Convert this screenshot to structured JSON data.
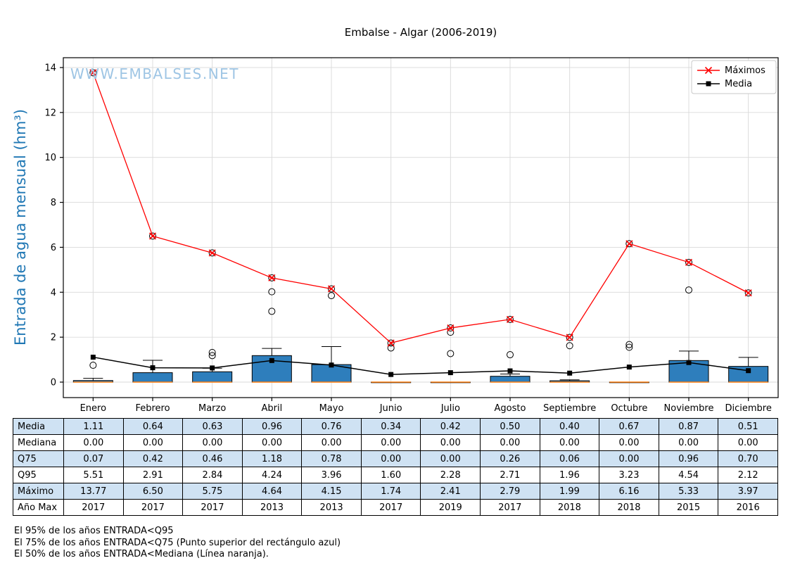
{
  "page": {
    "title": "Embalse - Algar (2006-2019)",
    "watermark": "WWW.EMBALSES.NET"
  },
  "chart_data": {
    "type": "boxplot",
    "title": "Embalse - Algar (2006-2019)",
    "ylabel": "Entrada de agua mensual (hm³)",
    "xlabel": "",
    "ylim": [
      -0.69,
      14.44
    ],
    "yticks": [
      0,
      2,
      4,
      6,
      8,
      10,
      12,
      14
    ],
    "grid": true,
    "legend": [
      "Máximos",
      "Media"
    ],
    "legend_position": "top-right",
    "categories": [
      "Enero",
      "Febrero",
      "Marzo",
      "Abril",
      "Mayo",
      "Junio",
      "Julio",
      "Agosto",
      "Septiembre",
      "Octubre",
      "Noviembre",
      "Diciembre"
    ],
    "maximos": [
      13.77,
      6.5,
      5.75,
      4.64,
      4.15,
      1.74,
      2.41,
      2.79,
      1.99,
      6.16,
      5.33,
      3.97
    ],
    "media": [
      1.11,
      0.64,
      0.63,
      0.96,
      0.76,
      0.34,
      0.42,
      0.5,
      0.4,
      0.67,
      0.87,
      0.51
    ],
    "mediana": [
      0,
      0,
      0,
      0,
      0,
      0,
      0,
      0,
      0,
      0,
      0,
      0
    ],
    "q75": [
      0.07,
      0.42,
      0.46,
      1.18,
      0.78,
      0.0,
      0.0,
      0.26,
      0.06,
      0.0,
      0.96,
      0.7
    ],
    "q95": [
      5.51,
      2.91,
      2.84,
      4.24,
      3.96,
      1.6,
      2.28,
      2.71,
      1.96,
      3.23,
      4.54,
      2.12
    ],
    "anio_max": [
      2017,
      2017,
      2017,
      2013,
      2013,
      2017,
      2019,
      2017,
      2018,
      2018,
      2015,
      2016
    ],
    "whisker_high": [
      0.17,
      0.97,
      0.62,
      1.5,
      1.58,
      0,
      0,
      0.36,
      0.1,
      0,
      1.38,
      1.1
    ],
    "fliers": [
      [
        0.75,
        13.77
      ],
      [
        6.5
      ],
      [
        1.18,
        1.32,
        5.75
      ],
      [
        3.15,
        4.02,
        4.64
      ],
      [
        3.85,
        4.15
      ],
      [
        1.52,
        1.74
      ],
      [
        1.27,
        2.22,
        2.41
      ],
      [
        1.22,
        2.79
      ],
      [
        1.62,
        1.99
      ],
      [
        1.55,
        1.67,
        6.16
      ],
      [
        4.1,
        5.33
      ],
      [
        3.97
      ]
    ],
    "colors": {
      "box_fill": "#2e7ebc",
      "box_edge": "#000000",
      "median": "#ff7f0e",
      "max_line": "#ff0000",
      "media_line": "#000000",
      "grid": "#d9d9d9",
      "ylabel": "#1f77b4",
      "watermark": "#9ec5e4"
    }
  },
  "table": {
    "rows": [
      {
        "label": "Media",
        "values": [
          "1.11",
          "0.64",
          "0.63",
          "0.96",
          "0.76",
          "0.34",
          "0.42",
          "0.50",
          "0.40",
          "0.67",
          "0.87",
          "0.51"
        ]
      },
      {
        "label": "Mediana",
        "values": [
          "0.00",
          "0.00",
          "0.00",
          "0.00",
          "0.00",
          "0.00",
          "0.00",
          "0.00",
          "0.00",
          "0.00",
          "0.00",
          "0.00"
        ]
      },
      {
        "label": "Q75",
        "values": [
          "0.07",
          "0.42",
          "0.46",
          "1.18",
          "0.78",
          "0.00",
          "0.00",
          "0.26",
          "0.06",
          "0.00",
          "0.96",
          "0.70"
        ]
      },
      {
        "label": "Q95",
        "values": [
          "5.51",
          "2.91",
          "2.84",
          "4.24",
          "3.96",
          "1.60",
          "2.28",
          "2.71",
          "1.96",
          "3.23",
          "4.54",
          "2.12"
        ]
      },
      {
        "label": "Máximo",
        "values": [
          "13.77",
          "6.50",
          "5.75",
          "4.64",
          "4.15",
          "1.74",
          "2.41",
          "2.79",
          "1.99",
          "6.16",
          "5.33",
          "3.97"
        ]
      },
      {
        "label": "Año Max",
        "values": [
          "2017",
          "2017",
          "2017",
          "2013",
          "2013",
          "2017",
          "2019",
          "2017",
          "2018",
          "2018",
          "2015",
          "2016"
        ]
      }
    ]
  },
  "footnotes": [
    "El 95% de los años ENTRADA<Q95",
    "El 75% de los años ENTRADA<Q75 (Punto superior del rectángulo azul)",
    "El 50% de los años ENTRADA<Mediana (Línea naranja)."
  ]
}
